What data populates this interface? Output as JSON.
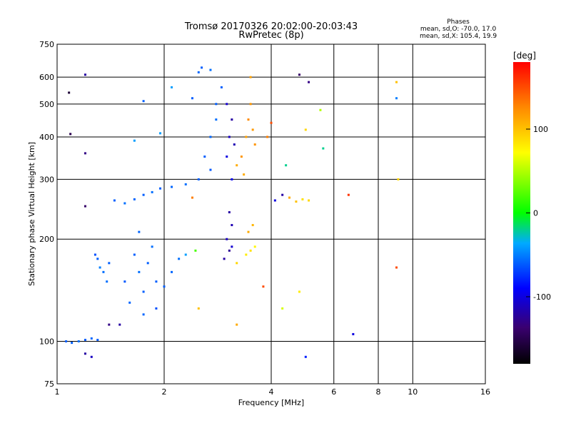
{
  "chart_data": {
    "type": "scatter",
    "title": "Tromsø 20170326 20:02:00-20:03:43",
    "subtitle": "RwPretec (8p)",
    "xlabel": "Frequency [MHz]",
    "ylabel": "Stationary phase Virtual Height [km]",
    "x_scale": "log",
    "y_scale": "log",
    "xlim": [
      1,
      16
    ],
    "ylim": [
      75,
      750
    ],
    "x_ticks": [
      1,
      2,
      4,
      6,
      8,
      10,
      16
    ],
    "y_ticks": [
      75,
      100,
      200,
      300,
      400,
      500,
      600,
      750
    ],
    "grid": true,
    "stats": {
      "header": "Phases",
      "line1": "mean, sd,O: -70.0, 17.0",
      "line2": "mean, sd,X: 105.4, 19.9"
    },
    "colorbar": {
      "label": "[deg]",
      "range": [
        -180,
        180
      ],
      "ticks": [
        100,
        0,
        -100
      ]
    },
    "points": [
      {
        "x": 1.06,
        "y": 100,
        "phase": -60
      },
      {
        "x": 1.1,
        "y": 99,
        "phase": -60
      },
      {
        "x": 1.15,
        "y": 100,
        "phase": -55
      },
      {
        "x": 1.2,
        "y": 101,
        "phase": -60
      },
      {
        "x": 1.25,
        "y": 102,
        "phase": -58
      },
      {
        "x": 1.3,
        "y": 101,
        "phase": -60
      },
      {
        "x": 1.09,
        "y": 408,
        "phase": -150
      },
      {
        "x": 1.08,
        "y": 540,
        "phase": -160
      },
      {
        "x": 1.2,
        "y": 610,
        "phase": -120
      },
      {
        "x": 1.2,
        "y": 358,
        "phase": -130
      },
      {
        "x": 1.2,
        "y": 250,
        "phase": -140
      },
      {
        "x": 1.2,
        "y": 92,
        "phase": -120
      },
      {
        "x": 1.3,
        "y": 175,
        "phase": -60
      },
      {
        "x": 1.32,
        "y": 165,
        "phase": -50
      },
      {
        "x": 1.35,
        "y": 160,
        "phase": -55
      },
      {
        "x": 1.4,
        "y": 170,
        "phase": -60
      },
      {
        "x": 1.28,
        "y": 180,
        "phase": -65
      },
      {
        "x": 1.38,
        "y": 150,
        "phase": -55
      },
      {
        "x": 1.45,
        "y": 260,
        "phase": -60
      },
      {
        "x": 1.55,
        "y": 255,
        "phase": -55
      },
      {
        "x": 1.65,
        "y": 262,
        "phase": -58
      },
      {
        "x": 1.75,
        "y": 270,
        "phase": -60
      },
      {
        "x": 1.85,
        "y": 275,
        "phase": -55
      },
      {
        "x": 1.95,
        "y": 282,
        "phase": -60
      },
      {
        "x": 2.1,
        "y": 285,
        "phase": -58
      },
      {
        "x": 2.3,
        "y": 290,
        "phase": -55
      },
      {
        "x": 2.5,
        "y": 300,
        "phase": -60
      },
      {
        "x": 2.7,
        "y": 320,
        "phase": -62
      },
      {
        "x": 2.6,
        "y": 350,
        "phase": -60
      },
      {
        "x": 2.7,
        "y": 400,
        "phase": -58
      },
      {
        "x": 2.8,
        "y": 450,
        "phase": -55
      },
      {
        "x": 2.8,
        "y": 500,
        "phase": -60
      },
      {
        "x": 2.9,
        "y": 560,
        "phase": -60
      },
      {
        "x": 2.7,
        "y": 630,
        "phase": -55
      },
      {
        "x": 2.55,
        "y": 640,
        "phase": -60
      },
      {
        "x": 2.5,
        "y": 620,
        "phase": -58
      },
      {
        "x": 3.0,
        "y": 350,
        "phase": -100
      },
      {
        "x": 3.05,
        "y": 400,
        "phase": -110
      },
      {
        "x": 3.1,
        "y": 450,
        "phase": -120
      },
      {
        "x": 3.0,
        "y": 500,
        "phase": -105
      },
      {
        "x": 3.15,
        "y": 380,
        "phase": -115
      },
      {
        "x": 3.1,
        "y": 300,
        "phase": -95
      },
      {
        "x": 3.2,
        "y": 330,
        "phase": 110
      },
      {
        "x": 3.3,
        "y": 350,
        "phase": 120
      },
      {
        "x": 3.4,
        "y": 400,
        "phase": 115
      },
      {
        "x": 3.45,
        "y": 450,
        "phase": 125
      },
      {
        "x": 3.5,
        "y": 500,
        "phase": 120
      },
      {
        "x": 3.5,
        "y": 600,
        "phase": 115
      },
      {
        "x": 3.35,
        "y": 310,
        "phase": 110
      },
      {
        "x": 3.55,
        "y": 420,
        "phase": 118
      },
      {
        "x": 3.6,
        "y": 380,
        "phase": 120
      },
      {
        "x": 1.7,
        "y": 210,
        "phase": -58
      },
      {
        "x": 1.65,
        "y": 180,
        "phase": -60
      },
      {
        "x": 1.7,
        "y": 160,
        "phase": -55
      },
      {
        "x": 1.75,
        "y": 140,
        "phase": -60
      },
      {
        "x": 1.6,
        "y": 130,
        "phase": -58
      },
      {
        "x": 1.55,
        "y": 150,
        "phase": -62
      },
      {
        "x": 1.8,
        "y": 170,
        "phase": -60
      },
      {
        "x": 1.85,
        "y": 190,
        "phase": -55
      },
      {
        "x": 1.9,
        "y": 150,
        "phase": -60
      },
      {
        "x": 1.75,
        "y": 120,
        "phase": -58
      },
      {
        "x": 1.9,
        "y": 125,
        "phase": -65
      },
      {
        "x": 2.0,
        "y": 145,
        "phase": -60
      },
      {
        "x": 2.1,
        "y": 160,
        "phase": -58
      },
      {
        "x": 2.2,
        "y": 175,
        "phase": -55
      },
      {
        "x": 2.3,
        "y": 180,
        "phase": -40
      },
      {
        "x": 3.05,
        "y": 240,
        "phase": -120
      },
      {
        "x": 3.1,
        "y": 220,
        "phase": -115
      },
      {
        "x": 3.0,
        "y": 200,
        "phase": -110
      },
      {
        "x": 3.05,
        "y": 185,
        "phase": -125
      },
      {
        "x": 2.95,
        "y": 175,
        "phase": -120
      },
      {
        "x": 3.1,
        "y": 190,
        "phase": -105
      },
      {
        "x": 3.2,
        "y": 170,
        "phase": 90
      },
      {
        "x": 3.4,
        "y": 180,
        "phase": 80
      },
      {
        "x": 3.5,
        "y": 185,
        "phase": 85
      },
      {
        "x": 3.6,
        "y": 190,
        "phase": 75
      },
      {
        "x": 3.45,
        "y": 210,
        "phase": 110
      },
      {
        "x": 3.55,
        "y": 220,
        "phase": 105
      },
      {
        "x": 4.1,
        "y": 260,
        "phase": -100
      },
      {
        "x": 4.3,
        "y": 270,
        "phase": -120
      },
      {
        "x": 4.5,
        "y": 265,
        "phase": 110
      },
      {
        "x": 4.7,
        "y": 258,
        "phase": 100
      },
      {
        "x": 4.9,
        "y": 262,
        "phase": 85
      },
      {
        "x": 5.1,
        "y": 260,
        "phase": 90
      },
      {
        "x": 3.9,
        "y": 400,
        "phase": 130
      },
      {
        "x": 4.0,
        "y": 440,
        "phase": 150
      },
      {
        "x": 4.8,
        "y": 610,
        "phase": -140
      },
      {
        "x": 5.1,
        "y": 580,
        "phase": -130
      },
      {
        "x": 5.0,
        "y": 420,
        "phase": 90
      },
      {
        "x": 5.5,
        "y": 480,
        "phase": 50
      },
      {
        "x": 5.6,
        "y": 370,
        "phase": -20
      },
      {
        "x": 4.4,
        "y": 330,
        "phase": -20
      },
      {
        "x": 4.8,
        "y": 140,
        "phase": 80
      },
      {
        "x": 4.3,
        "y": 125,
        "phase": 60
      },
      {
        "x": 3.8,
        "y": 145,
        "phase": 150
      },
      {
        "x": 5.0,
        "y": 90,
        "phase": -80
      },
      {
        "x": 6.6,
        "y": 270,
        "phase": 160
      },
      {
        "x": 6.8,
        "y": 105,
        "phase": -100
      },
      {
        "x": 9.0,
        "y": 580,
        "phase": 100
      },
      {
        "x": 9.0,
        "y": 520,
        "phase": -50
      },
      {
        "x": 9.1,
        "y": 300,
        "phase": 90
      },
      {
        "x": 9.0,
        "y": 165,
        "phase": 150
      },
      {
        "x": 2.4,
        "y": 520,
        "phase": -60
      },
      {
        "x": 2.1,
        "y": 560,
        "phase": -40
      },
      {
        "x": 1.75,
        "y": 510,
        "phase": -60
      },
      {
        "x": 1.95,
        "y": 410,
        "phase": -40
      },
      {
        "x": 1.65,
        "y": 390,
        "phase": -40
      },
      {
        "x": 2.4,
        "y": 265,
        "phase": 130
      },
      {
        "x": 2.45,
        "y": 185,
        "phase": 20
      },
      {
        "x": 2.5,
        "y": 125,
        "phase": 100
      },
      {
        "x": 3.2,
        "y": 112,
        "phase": 110
      },
      {
        "x": 1.5,
        "y": 112,
        "phase": -120
      },
      {
        "x": 1.4,
        "y": 112,
        "phase": -130
      },
      {
        "x": 1.25,
        "y": 90,
        "phase": -110
      }
    ]
  }
}
